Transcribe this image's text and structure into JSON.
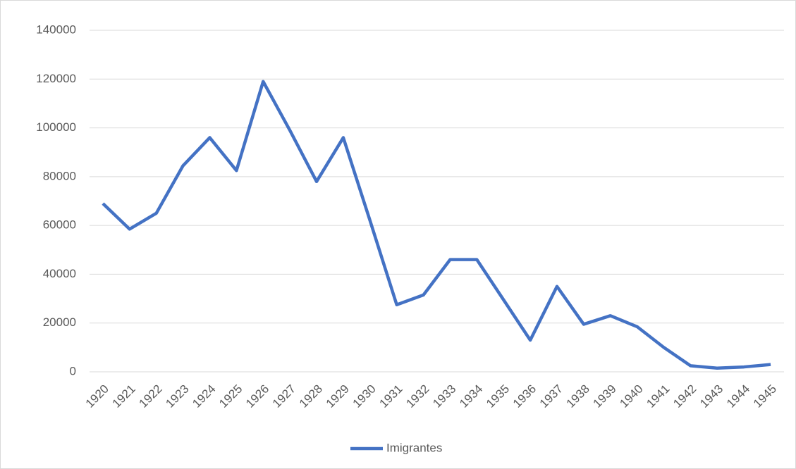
{
  "chart_data": {
    "type": "line",
    "categories": [
      "1920",
      "1921",
      "1922",
      "1923",
      "1924",
      "1925",
      "1926",
      "1927",
      "1928",
      "1929",
      "1930",
      "1931",
      "1932",
      "1933",
      "1934",
      "1935",
      "1936",
      "1937",
      "1938",
      "1939",
      "1940",
      "1941",
      "1942",
      "1943",
      "1944",
      "1945"
    ],
    "series": [
      {
        "name": "Imigrantes",
        "color": "#4472c4",
        "values": [
          69000,
          58500,
          65000,
          84500,
          96000,
          82500,
          119000,
          99000,
          78000,
          96000,
          62000,
          27500,
          31500,
          46000,
          46000,
          29500,
          13000,
          35000,
          19500,
          23000,
          18500,
          10000,
          2500,
          1500,
          2000,
          3000
        ]
      }
    ],
    "ylim": [
      0,
      140000
    ],
    "yticks": [
      0,
      20000,
      40000,
      60000,
      80000,
      100000,
      120000,
      140000
    ],
    "grid": true,
    "legend": "bottom"
  }
}
